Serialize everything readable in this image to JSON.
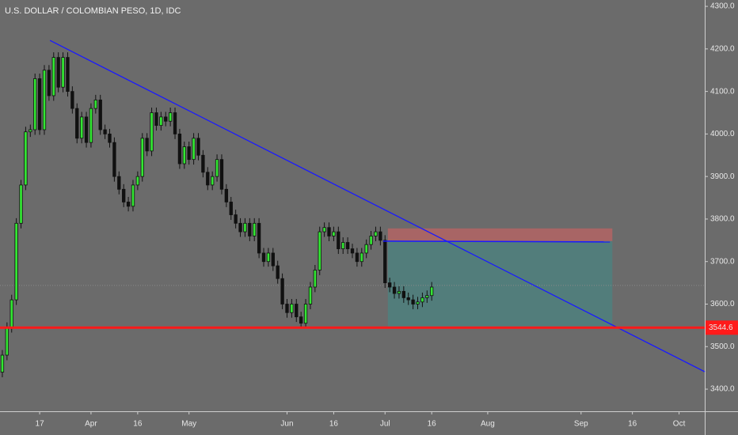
{
  "chart_data": {
    "type": "candlestick",
    "title": "U.S. DOLLAR / COLOMBIAN PESO, 1D, IDC",
    "up_color": "#33e633",
    "down_color": "#111111",
    "background": "#6b6b6b",
    "x": [
      -8,
      -7,
      -6,
      -5,
      -4,
      -3,
      -2,
      -1,
      0,
      1,
      2,
      3,
      4,
      5,
      6,
      7,
      8,
      9,
      10,
      11,
      12,
      13,
      14,
      15,
      16,
      17,
      18,
      19,
      20,
      21,
      22,
      23,
      24,
      25,
      26,
      27,
      28,
      29,
      30,
      31,
      32,
      33,
      34,
      35,
      36,
      37,
      38,
      39,
      40,
      41,
      42,
      43,
      44,
      45,
      46,
      47,
      48,
      49,
      50,
      51,
      52,
      53,
      54,
      55,
      56,
      57,
      58,
      59,
      60,
      61,
      62,
      63,
      64,
      65,
      66,
      67,
      68,
      69,
      70,
      71,
      72,
      73,
      74,
      75,
      76,
      77,
      78,
      79,
      80,
      81,
      82,
      83,
      84
    ],
    "open": [
      3440,
      3480,
      3545,
      3610,
      3790,
      3880,
      4005,
      4010,
      4130,
      4010,
      4150,
      4090,
      4180,
      4110,
      4180,
      4100,
      4060,
      3990,
      4040,
      3980,
      4060,
      4080,
      4010,
      4000,
      3980,
      3900,
      3870,
      3840,
      3830,
      3880,
      3900,
      3990,
      3960,
      4050,
      4020,
      4040,
      4030,
      4050,
      4000,
      3930,
      3970,
      3940,
      3990,
      3950,
      3910,
      3880,
      3900,
      3940,
      3870,
      3840,
      3810,
      3790,
      3770,
      3790,
      3760,
      3790,
      3720,
      3700,
      3720,
      3690,
      3660,
      3600,
      3580,
      3600,
      3570,
      3555,
      3600,
      3640,
      3680,
      3770,
      3780,
      3760,
      3770,
      3730,
      3745,
      3730,
      3720,
      3700,
      3720,
      3740,
      3760,
      3770,
      3750,
      3650,
      3640,
      3625,
      3630,
      3615,
      3610,
      3600,
      3605,
      3615,
      3620
    ],
    "high": [
      3492,
      3557,
      3622,
      3802,
      3892,
      4017,
      4022,
      4142,
      4142,
      4162,
      4162,
      4192,
      4192,
      4192,
      4192,
      4112,
      4072,
      4052,
      4052,
      4072,
      4092,
      4092,
      4022,
      4012,
      3992,
      3912,
      3882,
      3852,
      3892,
      3912,
      4002,
      4002,
      4062,
      4062,
      4052,
      4052,
      4062,
      4062,
      4012,
      3982,
      3982,
      4002,
      4002,
      3962,
      3922,
      3912,
      3952,
      3952,
      3882,
      3852,
      3822,
      3802,
      3802,
      3802,
      3802,
      3802,
      3732,
      3732,
      3732,
      3702,
      3672,
      3612,
      3612,
      3612,
      3582,
      3612,
      3652,
      3692,
      3782,
      3792,
      3792,
      3782,
      3782,
      3757,
      3757,
      3742,
      3732,
      3732,
      3752,
      3772,
      3782,
      3782,
      3762,
      3662,
      3652,
      3642,
      3642,
      3627,
      3622,
      3617,
      3627,
      3632,
      3652
    ],
    "low": [
      3428,
      3468,
      3533,
      3598,
      3778,
      3868,
      3993,
      3998,
      3998,
      3998,
      4078,
      4078,
      4098,
      4098,
      4088,
      4048,
      3978,
      3978,
      3968,
      3968,
      4048,
      3998,
      3988,
      3968,
      3888,
      3858,
      3828,
      3818,
      3818,
      3868,
      3888,
      3948,
      3948,
      4008,
      4008,
      4018,
      4018,
      3988,
      3918,
      3918,
      3928,
      3928,
      3938,
      3898,
      3868,
      3868,
      3888,
      3858,
      3828,
      3798,
      3778,
      3758,
      3758,
      3748,
      3748,
      3708,
      3688,
      3688,
      3678,
      3648,
      3588,
      3568,
      3568,
      3558,
      3543,
      3543,
      3588,
      3628,
      3668,
      3758,
      3748,
      3748,
      3718,
      3718,
      3718,
      3708,
      3688,
      3688,
      3708,
      3728,
      3748,
      3738,
      3638,
      3628,
      3613,
      3613,
      3603,
      3598,
      3588,
      3588,
      3593,
      3603,
      3608
    ],
    "close": [
      3480,
      3545,
      3610,
      3790,
      3880,
      4005,
      4010,
      4130,
      4010,
      4150,
      4090,
      4180,
      4110,
      4180,
      4100,
      4060,
      3990,
      4040,
      3980,
      4060,
      4080,
      4010,
      4000,
      3980,
      3900,
      3870,
      3840,
      3830,
      3880,
      3900,
      3990,
      3960,
      4050,
      4020,
      4040,
      4030,
      4050,
      4000,
      3930,
      3970,
      3940,
      3990,
      3950,
      3910,
      3880,
      3900,
      3940,
      3870,
      3840,
      3810,
      3790,
      3770,
      3790,
      3760,
      3790,
      3720,
      3700,
      3720,
      3690,
      3660,
      3600,
      3580,
      3600,
      3570,
      3555,
      3600,
      3640,
      3680,
      3770,
      3780,
      3760,
      3770,
      3730,
      3745,
      3730,
      3720,
      3700,
      3720,
      3740,
      3760,
      3770,
      3750,
      3650,
      3640,
      3625,
      3630,
      3615,
      3610,
      3600,
      3605,
      3615,
      3620,
      3640
    ],
    "xlim": [
      -8.5,
      142.5
    ],
    "xticks": [
      {
        "value": 0,
        "label": "17"
      },
      {
        "value": 11,
        "label": "Apr"
      },
      {
        "value": 21,
        "label": "16"
      },
      {
        "value": 32,
        "label": "May"
      },
      {
        "value": 53,
        "label": "Jun"
      },
      {
        "value": 63,
        "label": "16"
      },
      {
        "value": 74,
        "label": "Jul"
      },
      {
        "value": 84,
        "label": "16"
      },
      {
        "value": 96,
        "label": "Aug"
      },
      {
        "value": 116,
        "label": "Sep"
      },
      {
        "value": 127,
        "label": "16"
      },
      {
        "value": 137,
        "label": "Oct"
      }
    ],
    "ylim": [
      3348,
      4315
    ],
    "yticks": [
      {
        "value": 3400,
        "label": "3400.0"
      },
      {
        "value": 3500,
        "label": "3500.0"
      },
      {
        "value": 3600,
        "label": "3600.0"
      },
      {
        "value": 3700,
        "label": "3700.0"
      },
      {
        "value": 3800,
        "label": "3800.0"
      },
      {
        "value": 3900,
        "label": "3900.0"
      },
      {
        "value": 4000,
        "label": "4000.0"
      },
      {
        "value": 4100,
        "label": "4100.0"
      },
      {
        "value": 4200,
        "label": "4200.0"
      },
      {
        "value": 4300,
        "label": "4300.0"
      }
    ],
    "trendline": {
      "x": [
        2.2,
        142.5
      ],
      "y": [
        4220,
        3441
      ],
      "color": "#1a1aff"
    },
    "support_level": 3544.6,
    "support_color": "#ff1a1a",
    "last_price": 3644,
    "position": {
      "x": [
        74.6,
        122.7
      ],
      "entry": 3748,
      "stop": 3778,
      "target": 3544.6,
      "stop_color": "#a86565",
      "target_color": "#527d7b"
    }
  }
}
